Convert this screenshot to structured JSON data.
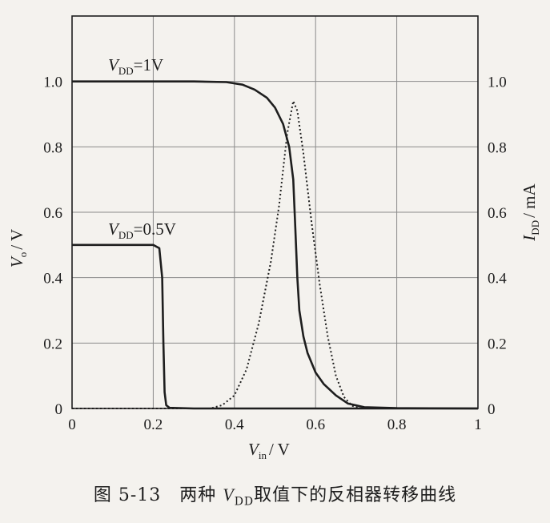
{
  "chart_data": {
    "type": "line",
    "x_label": {
      "symbol": "V",
      "subscript": "in",
      "unit": "/ V"
    },
    "y_label_left": {
      "symbol": "V",
      "subscript": "o",
      "unit": "/ V"
    },
    "y_label_right": {
      "symbol": "I",
      "subscript": "DD",
      "unit": "/ mA"
    },
    "x_ticks": [
      "0",
      "0.2",
      "0.4",
      "0.6",
      "0.8",
      "1"
    ],
    "y_ticks_left": [
      "0",
      "0.2",
      "0.4",
      "0.6",
      "0.8",
      "1.0"
    ],
    "y_ticks_right": [
      "0",
      "0.2",
      "0.4",
      "0.6",
      "0.8",
      "1.0"
    ],
    "xlim": [
      0,
      1
    ],
    "ylim_left": [
      0,
      1.2
    ],
    "ylim_right": [
      0,
      1.2
    ],
    "grid": true,
    "annotations": [
      {
        "symbol": "V",
        "subscript": "DD",
        "text": "=1V"
      },
      {
        "symbol": "V",
        "subscript": "DD",
        "text": "=0.5V"
      }
    ],
    "series": [
      {
        "style": "solid",
        "axis": "left",
        "points": [
          [
            0,
            1.0
          ],
          [
            0.3,
            1.0
          ],
          [
            0.38,
            0.998
          ],
          [
            0.42,
            0.99
          ],
          [
            0.45,
            0.975
          ],
          [
            0.48,
            0.95
          ],
          [
            0.5,
            0.92
          ],
          [
            0.52,
            0.87
          ],
          [
            0.535,
            0.8
          ],
          [
            0.545,
            0.7
          ],
          [
            0.55,
            0.55
          ],
          [
            0.555,
            0.4
          ],
          [
            0.56,
            0.3
          ],
          [
            0.57,
            0.22
          ],
          [
            0.58,
            0.17
          ],
          [
            0.6,
            0.11
          ],
          [
            0.62,
            0.075
          ],
          [
            0.65,
            0.04
          ],
          [
            0.68,
            0.015
          ],
          [
            0.72,
            0.004
          ],
          [
            0.8,
            0.001
          ],
          [
            1.0,
            0.0
          ]
        ]
      },
      {
        "style": "solid",
        "axis": "left",
        "points": [
          [
            0,
            0.5
          ],
          [
            0.2,
            0.5
          ],
          [
            0.215,
            0.49
          ],
          [
            0.222,
            0.4
          ],
          [
            0.225,
            0.2
          ],
          [
            0.228,
            0.05
          ],
          [
            0.232,
            0.01
          ],
          [
            0.24,
            0.002
          ],
          [
            0.3,
            0.0
          ],
          [
            1.0,
            0.0
          ]
        ]
      },
      {
        "style": "dotted",
        "axis": "right",
        "points": [
          [
            0,
            0.0
          ],
          [
            0.34,
            0.0
          ],
          [
            0.37,
            0.01
          ],
          [
            0.4,
            0.04
          ],
          [
            0.43,
            0.12
          ],
          [
            0.46,
            0.26
          ],
          [
            0.49,
            0.45
          ],
          [
            0.51,
            0.62
          ],
          [
            0.53,
            0.84
          ],
          [
            0.545,
            0.94
          ],
          [
            0.555,
            0.91
          ],
          [
            0.57,
            0.78
          ],
          [
            0.59,
            0.57
          ],
          [
            0.61,
            0.38
          ],
          [
            0.63,
            0.22
          ],
          [
            0.65,
            0.1
          ],
          [
            0.67,
            0.035
          ],
          [
            0.69,
            0.008
          ],
          [
            0.71,
            0.0
          ],
          [
            1.0,
            0.0
          ]
        ]
      }
    ]
  },
  "caption": {
    "prefix": "图 5-13　两种 ",
    "symbol": "V",
    "subscript": "DD",
    "suffix": "取值下的反相器转移曲线"
  }
}
